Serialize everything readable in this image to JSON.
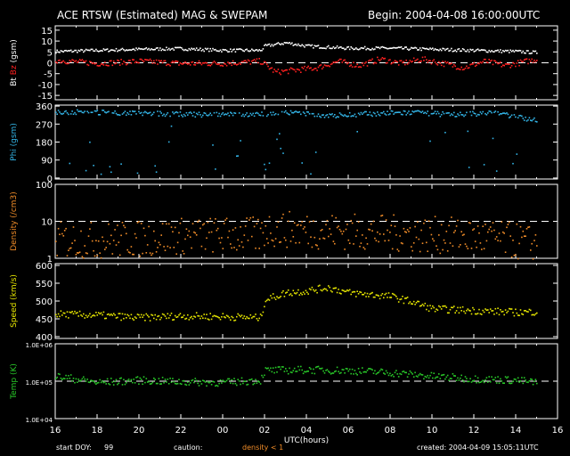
{
  "header": {
    "title": "ACE RTSW (Estimated) MAG & SWEPAM",
    "begin": "Begin: 2004-04-08 16:00:00UTC"
  },
  "footer": {
    "start_doy_label": "start DOY:",
    "start_doy_value": "99",
    "caution_label": "caution:",
    "caution_text": "density < 1",
    "created": "created: 2004-04-09 15:05:11UTC"
  },
  "colors": {
    "background": "#000000",
    "frame": "#ffffff",
    "bt": "#ffffff",
    "bz": "#ff2020",
    "phi": "#33b4e6",
    "density": "#f08c28",
    "speed": "#e6e600",
    "temp": "#28c828",
    "caution": "#f08c28"
  },
  "chart_data": {
    "type": "scatter",
    "x_axis": {
      "label": "UTC(hours)",
      "ticks": [
        "16",
        "18",
        "20",
        "22",
        "00",
        "02",
        "04",
        "06",
        "08",
        "10",
        "12",
        "14",
        "16"
      ],
      "range_hours": [
        0,
        24
      ],
      "start": "2004-04-08 16:00:00UTC"
    },
    "panels": [
      {
        "id": "mag",
        "ylabel_parts": [
          {
            "text": "Bt",
            "color": "#ffffff"
          },
          {
            "text": "Bz",
            "color": "#ff2020"
          },
          {
            "text": "(gsm)",
            "color": "#ffffff"
          }
        ],
        "scale": "linear",
        "ylim": [
          -17,
          17
        ],
        "ticks": [
          15,
          10,
          5,
          0,
          -5,
          -10,
          -15
        ],
        "tick_labels": [
          "15",
          "10",
          "5",
          "0",
          "-5",
          "-10",
          "-15"
        ],
        "ref_lines": [
          0
        ],
        "series": [
          {
            "name": "Bt",
            "color": "#ffffff",
            "noise": 0.7,
            "knots": [
              [
                0,
                5.5
              ],
              [
                2,
                6
              ],
              [
                4,
                6.5
              ],
              [
                6,
                6.8
              ],
              [
                8,
                6
              ],
              [
                9.8,
                6
              ],
              [
                10,
                8
              ],
              [
                11,
                9.5
              ],
              [
                12,
                8
              ],
              [
                14,
                7
              ],
              [
                16,
                7
              ],
              [
                18,
                6.5
              ],
              [
                20,
                6
              ],
              [
                22,
                5.5
              ],
              [
                23,
                5
              ]
            ]
          },
          {
            "name": "Bz",
            "color": "#ff2020",
            "noise": 1.3,
            "knots": [
              [
                0,
                1.5
              ],
              [
                2,
                0
              ],
              [
                4,
                1
              ],
              [
                6,
                0
              ],
              [
                8,
                0
              ],
              [
                9.8,
                1
              ],
              [
                10.5,
                -4
              ],
              [
                11.5,
                -3
              ],
              [
                12.5,
                -2
              ],
              [
                13.5,
                1
              ],
              [
                14.5,
                -1
              ],
              [
                15.5,
                2
              ],
              [
                16.5,
                0
              ],
              [
                17.5,
                2
              ],
              [
                18.5,
                0
              ],
              [
                19.5,
                -2
              ],
              [
                20.5,
                1
              ],
              [
                21.5,
                -1
              ],
              [
                22.5,
                1
              ],
              [
                23,
                2
              ]
            ]
          }
        ]
      },
      {
        "id": "phi",
        "ylabel_parts": [
          {
            "text": "Phi (gsm)",
            "color": "#33b4e6"
          }
        ],
        "scale": "linear",
        "ylim": [
          -5,
          365
        ],
        "ticks": [
          360,
          270,
          180,
          90,
          0
        ],
        "tick_labels": [
          "360",
          "270",
          "180",
          "90",
          "0"
        ],
        "ref_lines": [],
        "series": [
          {
            "name": "Phi",
            "color": "#33b4e6",
            "noise": 12,
            "knots": [
              [
                0,
                335
              ],
              [
                3,
                330
              ],
              [
                5,
                325
              ],
              [
                7,
                320
              ],
              [
                9,
                320
              ],
              [
                11,
                330
              ],
              [
                13,
                315
              ],
              [
                15,
                325
              ],
              [
                17,
                330
              ],
              [
                19,
                320
              ],
              [
                21,
                330
              ],
              [
                23,
                290
              ]
            ]
          }
        ]
      },
      {
        "id": "density",
        "ylabel_parts": [
          {
            "text": "Density (/cm3)",
            "color": "#f08c28"
          }
        ],
        "scale": "log",
        "ylim": [
          1,
          100
        ],
        "ticks": [
          100,
          10,
          1
        ],
        "tick_labels": [
          "100",
          "10",
          "1"
        ],
        "ref_lines": [
          10
        ],
        "series": [
          {
            "name": "Density",
            "color": "#f08c28",
            "noise": 0.5,
            "knots": [
              [
                0,
                3.3
              ],
              [
                2,
                3.2
              ],
              [
                4,
                3.5
              ],
              [
                6,
                4.2
              ],
              [
                8,
                4.5
              ],
              [
                9.8,
                4.3
              ],
              [
                10,
                6.5
              ],
              [
                12,
                6.0
              ],
              [
                14,
                5.5
              ],
              [
                16,
                5.0
              ],
              [
                18,
                4.5
              ],
              [
                20,
                4.0
              ],
              [
                22,
                3.0
              ],
              [
                23,
                2.5
              ]
            ]
          }
        ]
      },
      {
        "id": "speed",
        "ylabel_parts": [
          {
            "text": "Speed (km/s)",
            "color": "#e6e600"
          }
        ],
        "scale": "linear",
        "ylim": [
          395,
          605
        ],
        "ticks": [
          600,
          550,
          500,
          450,
          400
        ],
        "tick_labels": [
          "600",
          "550",
          "500",
          "450",
          "400"
        ],
        "ref_lines": [],
        "series": [
          {
            "name": "Speed",
            "color": "#e6e600",
            "noise": 10,
            "knots": [
              [
                0,
                465
              ],
              [
                2,
                462
              ],
              [
                4,
                455
              ],
              [
                6,
                460
              ],
              [
                8,
                458
              ],
              [
                9.8,
                455
              ],
              [
                10,
                505
              ],
              [
                11,
                525
              ],
              [
                12,
                530
              ],
              [
                13,
                540
              ],
              [
                14,
                525
              ],
              [
                15,
                520
              ],
              [
                16,
                515
              ],
              [
                17,
                500
              ],
              [
                18,
                480
              ],
              [
                20,
                475
              ],
              [
                22,
                470
              ],
              [
                23,
                472
              ]
            ]
          }
        ]
      },
      {
        "id": "temp",
        "ylabel_parts": [
          {
            "text": "Temp (K)",
            "color": "#28c828"
          }
        ],
        "scale": "log",
        "ylim": [
          10000,
          1000000
        ],
        "ticks": [
          1000000,
          100000,
          10000
        ],
        "tick_labels": [
          "1.0E+06",
          "1.0E+05",
          "1.0E+04"
        ],
        "ref_lines": [
          100000
        ],
        "series": [
          {
            "name": "Temp",
            "color": "#28c828",
            "noise": 0.1,
            "knots": [
              [
                0,
                140000
              ],
              [
                2,
                95000
              ],
              [
                4,
                110000
              ],
              [
                6,
                100000
              ],
              [
                8,
                95000
              ],
              [
                9.8,
                110000
              ],
              [
                10,
                200000
              ],
              [
                12,
                210000
              ],
              [
                14,
                200000
              ],
              [
                16,
                175000
              ],
              [
                18,
                140000
              ],
              [
                20,
                120000
              ],
              [
                22,
                110000
              ],
              [
                23,
                95000
              ]
            ]
          }
        ]
      }
    ]
  }
}
